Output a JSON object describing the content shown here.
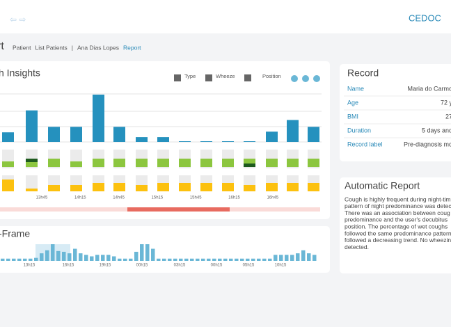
{
  "header": {
    "brand": "CEDOC"
  },
  "breadcrumb": {
    "title": "rt",
    "items": [
      "Patient",
      "List Patients",
      "|",
      "Ana Dias Lopes",
      "Report"
    ]
  },
  "insights": {
    "title": "h Insights",
    "toggles": [
      "Type",
      "Wheeze",
      "Position"
    ],
    "chart_data": {
      "type": "bar",
      "values": [
        14,
        46,
        22,
        22,
        69,
        22,
        7,
        7,
        1,
        1,
        1,
        1,
        15,
        32,
        22
      ],
      "color": "#2591be",
      "ylim": [
        0,
        70
      ],
      "wheeze": [
        8,
        12,
        12,
        8,
        12,
        12,
        12,
        12,
        12,
        12,
        12,
        12,
        12,
        12,
        12
      ],
      "wheeze_color": "#8cc63f",
      "position": [
        17,
        4,
        9,
        9,
        12,
        12,
        9,
        12,
        12,
        12,
        12,
        9,
        12,
        12,
        12
      ],
      "position_color": "#fcc10f",
      "xtick_labels": [
        "13h45",
        "14h15",
        "14h45",
        "15h15",
        "15h45",
        "16h15",
        "16h45"
      ]
    }
  },
  "record": {
    "title": "Record",
    "rows": [
      [
        "Name",
        "Maria do Carmo"
      ],
      [
        "Age",
        "72 y"
      ],
      [
        "BMI",
        "27"
      ],
      [
        "Duration",
        "5 days and"
      ],
      [
        "Record label",
        "Pre-diagnosis mo"
      ]
    ]
  },
  "report": {
    "title": "Automatic Report",
    "lines": [
      "Cough is highly frequent during night-time",
      "pattern of night predominance was detec",
      "There was an association between coug",
      "predominance and the user's decubitus",
      "position. The percentage of wet coughs",
      "followed the same predominance pattern",
      "followed a decreasing trend. No wheezin",
      "detected."
    ]
  },
  "frame": {
    "title": "-Frame",
    "chart_data": {
      "type": "bar",
      "color": "#6ab7d6",
      "ylim": [
        0,
        22
      ],
      "values": [
        3,
        3,
        3,
        3,
        3,
        3,
        4,
        10,
        14,
        22,
        13,
        12,
        10,
        16,
        10,
        8,
        6,
        8,
        8,
        8,
        6,
        3,
        3,
        3,
        12,
        22,
        22,
        16,
        3,
        3,
        3,
        3,
        3,
        3,
        3,
        3,
        3,
        3,
        3,
        3,
        3,
        3,
        3,
        3,
        3,
        3,
        3,
        3,
        3,
        8,
        8,
        8,
        8,
        10,
        14,
        10,
        8
      ],
      "xtick_labels": [
        "13h15",
        "16h15",
        "19h15",
        "00h15",
        "03h15",
        "00h15",
        "05h15",
        "10h15"
      ]
    }
  }
}
